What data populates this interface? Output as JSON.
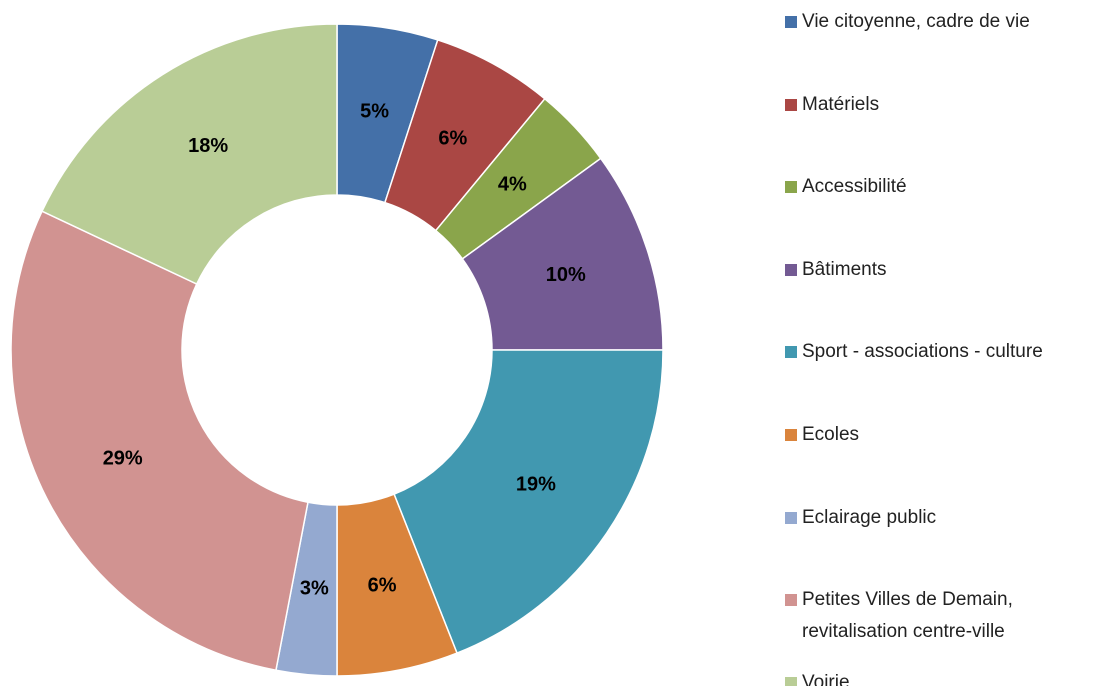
{
  "chart_data": {
    "type": "donut",
    "categories": [
      "Vie citoyenne, cadre de vie",
      "Matériels",
      "Accessibilité",
      "Bâtiments",
      "Sport - associations - culture",
      "Ecoles",
      "Eclairage public",
      "Petites Villes de Demain, revitalisation centre-ville",
      "Voirie"
    ],
    "values": [
      5,
      6,
      4,
      10,
      19,
      6,
      3,
      29,
      18
    ],
    "value_labels": [
      "5%",
      "6%",
      "4%",
      "10%",
      "19%",
      "6%",
      "3%",
      "29%",
      "18%"
    ],
    "colors": [
      "#4470a8",
      "#aa4744",
      "#8aa54b",
      "#735a93",
      "#4198b0",
      "#da843c",
      "#94a9d0",
      "#d19391",
      "#b9cd96"
    ]
  }
}
